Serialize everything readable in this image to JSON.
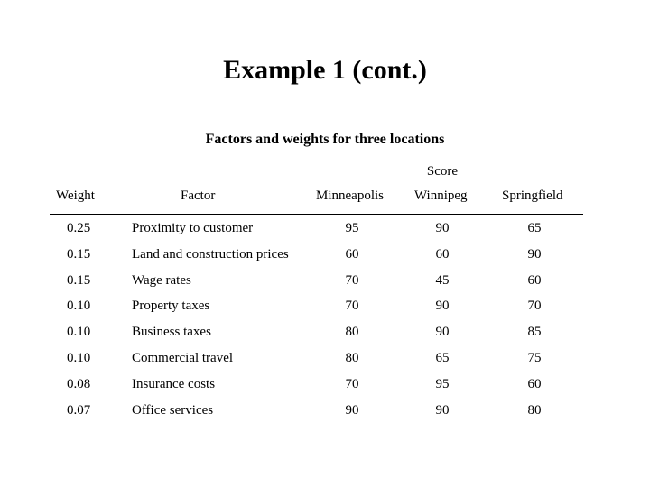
{
  "title": "Example 1 (cont.)",
  "table": {
    "caption": "Factors and weights for three locations",
    "score_label": "Score",
    "headers": {
      "weight": "Weight",
      "factor": "Factor",
      "minneapolis": "Minneapolis",
      "winnipeg": "Winnipeg",
      "springfield": "Springfield"
    },
    "rows": [
      {
        "weight": "0.25",
        "factor": "Proximity to customer",
        "minneapolis": "95",
        "winnipeg": "90",
        "springfield": "65"
      },
      {
        "weight": "0.15",
        "factor": "Land and construction prices",
        "minneapolis": "60",
        "winnipeg": "60",
        "springfield": "90"
      },
      {
        "weight": "0.15",
        "factor": "Wage rates",
        "minneapolis": "70",
        "winnipeg": "45",
        "springfield": "60"
      },
      {
        "weight": "0.10",
        "factor": "Property taxes",
        "minneapolis": "70",
        "winnipeg": "90",
        "springfield": "70"
      },
      {
        "weight": "0.10",
        "factor": "Business taxes",
        "minneapolis": "80",
        "winnipeg": "90",
        "springfield": "85"
      },
      {
        "weight": "0.10",
        "factor": "Commercial travel",
        "minneapolis": "80",
        "winnipeg": "65",
        "springfield": "75"
      },
      {
        "weight": "0.08",
        "factor": "Insurance costs",
        "minneapolis": "70",
        "winnipeg": "95",
        "springfield": "60"
      },
      {
        "weight": "0.07",
        "factor": "Office services",
        "minneapolis": "90",
        "winnipeg": "90",
        "springfield": "80"
      }
    ]
  }
}
